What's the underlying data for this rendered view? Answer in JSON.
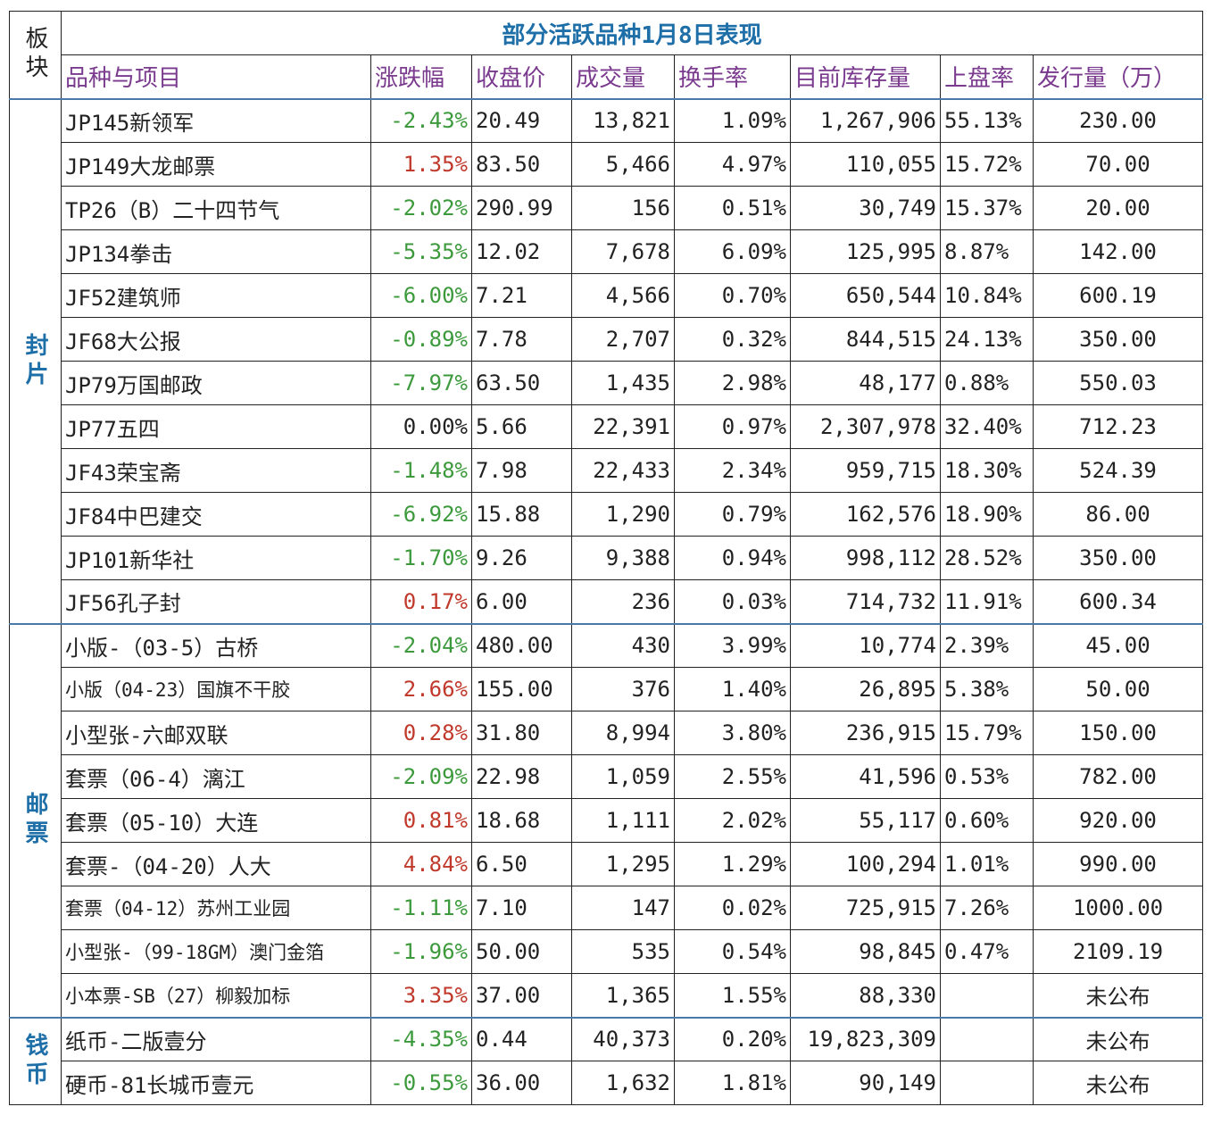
{
  "table": {
    "title": "部分活跃品种1月8日表现",
    "headers": [
      "板块",
      "品种与项目",
      "涨跌幅",
      "收盘价",
      "成交量",
      "换手率",
      "目前库存量",
      "上盘率",
      "发行量（万）"
    ],
    "groups": [
      {
        "name": "封片",
        "rows": [
          [
            "JP145新领军",
            "-2.43%",
            "20.49",
            "13,821",
            "1.09%",
            "1,267,906",
            "55.13%",
            "230.00"
          ],
          [
            "JP149大龙邮票",
            "1.35%",
            "83.50",
            "5,466",
            "4.97%",
            "110,055",
            "15.72%",
            "70.00"
          ],
          [
            "TP26（B）二十四节气",
            "-2.02%",
            "290.99",
            "156",
            "0.51%",
            "30,749",
            "15.37%",
            "20.00"
          ],
          [
            "JP134拳击",
            "-5.35%",
            "12.02",
            "7,678",
            "6.09%",
            "125,995",
            "8.87%",
            "142.00"
          ],
          [
            "JF52建筑师",
            "-6.00%",
            "7.21",
            "4,566",
            "0.70%",
            "650,544",
            "10.84%",
            "600.19"
          ],
          [
            "JF68大公报",
            "-0.89%",
            "7.78",
            "2,707",
            "0.32%",
            "844,515",
            "24.13%",
            "350.00"
          ],
          [
            "JP79万国邮政",
            "-7.97%",
            "63.50",
            "1,435",
            "2.98%",
            "48,177",
            "0.88%",
            "550.03"
          ],
          [
            "JP77五四",
            "0.00%",
            "5.66",
            "22,391",
            "0.97%",
            "2,307,978",
            "32.40%",
            "712.23"
          ],
          [
            "JF43荣宝斋",
            "-1.48%",
            "7.98",
            "22,433",
            "2.34%",
            "959,715",
            "18.30%",
            "524.39"
          ],
          [
            "JF84中巴建交",
            "-6.92%",
            "15.88",
            "1,290",
            "0.79%",
            "162,576",
            "18.90%",
            "86.00"
          ],
          [
            "JP101新华社",
            "-1.70%",
            "9.26",
            "9,388",
            "0.94%",
            "998,112",
            "28.52%",
            "350.00"
          ],
          [
            "JF56孔子封",
            "0.17%",
            "6.00",
            "236",
            "0.03%",
            "714,732",
            "11.91%",
            "600.34"
          ]
        ]
      },
      {
        "name": "邮票",
        "rows": [
          [
            "小版-（03-5）古桥",
            "-2.04%",
            "480.00",
            "430",
            "3.99%",
            "10,774",
            "2.39%",
            "45.00"
          ],
          [
            "小版（04-23）国旗不干胶",
            "2.66%",
            "155.00",
            "376",
            "1.40%",
            "26,895",
            "5.38%",
            "50.00"
          ],
          [
            "小型张-六邮双联",
            "0.28%",
            "31.80",
            "8,994",
            "3.80%",
            "236,915",
            "15.79%",
            "150.00"
          ],
          [
            "套票（06-4）漓江",
            "-2.09%",
            "22.98",
            "1,059",
            "2.55%",
            "41,596",
            "0.53%",
            "782.00"
          ],
          [
            "套票（05-10）大连",
            "0.81%",
            "18.68",
            "1,111",
            "2.02%",
            "55,117",
            "0.60%",
            "920.00"
          ],
          [
            "套票-（04-20）人大",
            "4.84%",
            "6.50",
            "1,295",
            "1.29%",
            "100,294",
            "1.01%",
            "990.00"
          ],
          [
            "套票（04-12）苏州工业园",
            "-1.11%",
            "7.10",
            "147",
            "0.02%",
            "725,915",
            "7.26%",
            "1000.00"
          ],
          [
            "小型张-（99-18GM）澳门金箔",
            "-1.96%",
            "50.00",
            "535",
            "0.54%",
            "98,845",
            "0.47%",
            "2109.19"
          ],
          [
            "小本票-SB（27）柳毅加标",
            "3.35%",
            "37.00",
            "1,365",
            "1.55%",
            "88,330",
            null,
            "未公布"
          ]
        ]
      },
      {
        "name": "钱币",
        "rows": [
          [
            "纸币-二版壹分",
            "-4.35%",
            "0.44",
            "40,373",
            "0.20%",
            "19,823,309",
            null,
            "未公布"
          ],
          [
            "硬币-81长城币壹元",
            "-0.55%",
            "36.00",
            "1,632",
            "1.81%",
            "90,149",
            null,
            "未公布"
          ]
        ]
      }
    ]
  }
}
